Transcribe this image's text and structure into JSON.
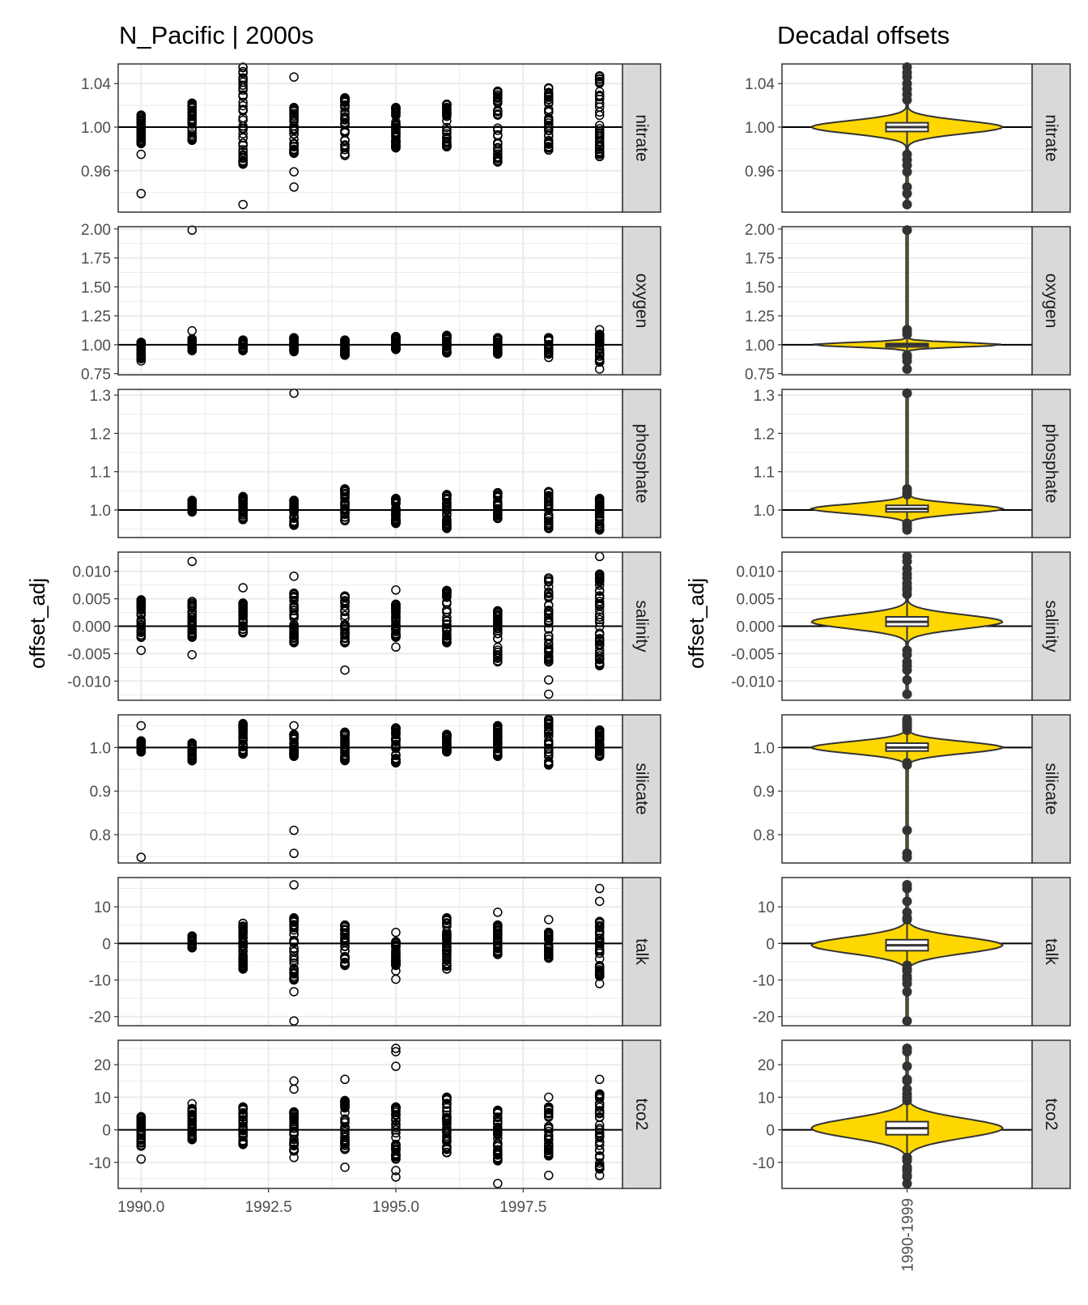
{
  "left_title": "N_Pacific | 2000s",
  "right_title": "Decadal offsets",
  "ylabel": "offset_adj",
  "x_ticks": [
    "1990.0",
    "1992.5",
    "1995.0",
    "1997.5"
  ],
  "x_tick_values": [
    1990.0,
    1992.5,
    1995.0,
    1997.5
  ],
  "x_range": [
    1989.55,
    1999.45
  ],
  "violin_category": "1990-1999",
  "colors": {
    "violin_fill": "#FFD700",
    "strip_fill": "#D9D9D9",
    "grid": "#EBEBEB",
    "line": "#000000"
  },
  "chart_data": [
    {
      "type": "scatter",
      "title": "N_Pacific | 2000s",
      "xlabel": "",
      "ylabel": "offset_adj",
      "panels": [
        {
          "label": "nitrate",
          "ylim": [
            0.922,
            1.058
          ],
          "ticks": [
            1.04,
            1.0,
            0.96
          ],
          "tick_labels": [
            "1.04",
            "1.00",
            "0.96"
          ],
          "years": [
            {
              "x": 1990,
              "min": 0.985,
              "max": 1.011,
              "outliers": [
                0.975,
                0.939
              ]
            },
            {
              "x": 1991,
              "min": 0.988,
              "max": 1.022,
              "outliers": []
            },
            {
              "x": 1992,
              "min": 0.966,
              "max": 1.055,
              "outliers": [
                0.929
              ]
            },
            {
              "x": 1993,
              "min": 0.976,
              "max": 1.018,
              "outliers": [
                1.046,
                0.959,
                0.945
              ]
            },
            {
              "x": 1994,
              "min": 0.974,
              "max": 1.027,
              "outliers": []
            },
            {
              "x": 1995,
              "min": 0.981,
              "max": 1.018,
              "outliers": []
            },
            {
              "x": 1996,
              "min": 0.982,
              "max": 1.021,
              "outliers": []
            },
            {
              "x": 1997,
              "min": 0.968,
              "max": 1.033,
              "outliers": []
            },
            {
              "x": 1998,
              "min": 0.979,
              "max": 1.036,
              "outliers": []
            },
            {
              "x": 1999,
              "min": 0.973,
              "max": 1.047,
              "outliers": []
            }
          ]
        },
        {
          "label": "oxygen",
          "ylim": [
            0.74,
            2.02
          ],
          "ticks": [
            2.0,
            1.75,
            1.5,
            1.25,
            1.0,
            0.75
          ],
          "tick_labels": [
            "2.00",
            "1.75",
            "1.50",
            "1.25",
            "1.00",
            "0.75"
          ],
          "years": [
            {
              "x": 1990,
              "min": 0.88,
              "max": 1.02,
              "outliers": [
                0.86
              ]
            },
            {
              "x": 1991,
              "min": 0.95,
              "max": 1.05,
              "outliers": [
                1.12,
                1.99
              ]
            },
            {
              "x": 1992,
              "min": 0.95,
              "max": 1.04,
              "outliers": []
            },
            {
              "x": 1993,
              "min": 0.94,
              "max": 1.06,
              "outliers": []
            },
            {
              "x": 1994,
              "min": 0.91,
              "max": 1.04,
              "outliers": []
            },
            {
              "x": 1995,
              "min": 0.96,
              "max": 1.07,
              "outliers": []
            },
            {
              "x": 1996,
              "min": 0.93,
              "max": 1.08,
              "outliers": []
            },
            {
              "x": 1997,
              "min": 0.92,
              "max": 1.06,
              "outliers": []
            },
            {
              "x": 1998,
              "min": 0.92,
              "max": 1.06,
              "outliers": [
                0.89
              ]
            },
            {
              "x": 1999,
              "min": 0.85,
              "max": 1.09,
              "outliers": [
                0.79,
                1.13
              ]
            }
          ]
        },
        {
          "label": "phosphate",
          "ylim": [
            0.928,
            1.315
          ],
          "ticks": [
            1.3,
            1.2,
            1.1,
            1.0
          ],
          "tick_labels": [
            "1.3",
            "1.2",
            "1.1",
            "1.0"
          ],
          "years": [
            {
              "x": 1991,
              "min": 0.995,
              "max": 1.025,
              "outliers": []
            },
            {
              "x": 1992,
              "min": 0.975,
              "max": 1.035,
              "outliers": []
            },
            {
              "x": 1993,
              "min": 0.96,
              "max": 1.025,
              "outliers": [
                1.305
              ]
            },
            {
              "x": 1994,
              "min": 0.972,
              "max": 1.055,
              "outliers": []
            },
            {
              "x": 1995,
              "min": 0.965,
              "max": 1.03,
              "outliers": []
            },
            {
              "x": 1996,
              "min": 0.952,
              "max": 1.04,
              "outliers": []
            },
            {
              "x": 1997,
              "min": 0.978,
              "max": 1.045,
              "outliers": []
            },
            {
              "x": 1998,
              "min": 0.952,
              "max": 1.048,
              "outliers": []
            },
            {
              "x": 1999,
              "min": 0.948,
              "max": 1.03,
              "outliers": []
            }
          ]
        },
        {
          "label": "salinity",
          "ylim": [
            -0.0135,
            0.0135
          ],
          "ticks": [
            0.01,
            0.005,
            0.0,
            -0.005,
            -0.01
          ],
          "tick_labels": [
            "0.010",
            "0.005",
            "0.000",
            "-0.005",
            "-0.010"
          ],
          "years": [
            {
              "x": 1990,
              "min": -0.002,
              "max": 0.0048,
              "outliers": [
                -0.0044
              ]
            },
            {
              "x": 1991,
              "min": -0.002,
              "max": 0.0045,
              "outliers": [
                -0.0052,
                0.0118
              ]
            },
            {
              "x": 1992,
              "min": -0.0012,
              "max": 0.0042,
              "outliers": [
                0.007
              ]
            },
            {
              "x": 1993,
              "min": -0.003,
              "max": 0.006,
              "outliers": [
                0.0091
              ]
            },
            {
              "x": 1994,
              "min": -0.003,
              "max": 0.0055,
              "outliers": [
                -0.008
              ]
            },
            {
              "x": 1995,
              "min": -0.002,
              "max": 0.004,
              "outliers": [
                -0.0038,
                0.0066
              ]
            },
            {
              "x": 1996,
              "min": -0.003,
              "max": 0.0065,
              "outliers": []
            },
            {
              "x": 1997,
              "min": -0.0065,
              "max": 0.0028,
              "outliers": []
            },
            {
              "x": 1998,
              "min": -0.0065,
              "max": 0.0088,
              "outliers": [
                -0.0098,
                -0.0124
              ]
            },
            {
              "x": 1999,
              "min": -0.0072,
              "max": 0.0095,
              "outliers": [
                0.0127
              ]
            }
          ]
        },
        {
          "label": "silicate",
          "ylim": [
            0.735,
            1.075
          ],
          "ticks": [
            1.0,
            0.9,
            0.8
          ],
          "tick_labels": [
            "1.0",
            "0.9",
            "0.8"
          ],
          "years": [
            {
              "x": 1990,
              "min": 0.99,
              "max": 1.015,
              "outliers": [
                1.05,
                0.748
              ]
            },
            {
              "x": 1991,
              "min": 0.97,
              "max": 1.01,
              "outliers": []
            },
            {
              "x": 1992,
              "min": 0.985,
              "max": 1.055,
              "outliers": []
            },
            {
              "x": 1993,
              "min": 0.98,
              "max": 1.03,
              "outliers": [
                1.05,
                0.81,
                0.757
              ]
            },
            {
              "x": 1994,
              "min": 0.97,
              "max": 1.035,
              "outliers": []
            },
            {
              "x": 1995,
              "min": 0.965,
              "max": 1.045,
              "outliers": []
            },
            {
              "x": 1996,
              "min": 0.99,
              "max": 1.03,
              "outliers": []
            },
            {
              "x": 1997,
              "min": 0.98,
              "max": 1.05,
              "outliers": []
            },
            {
              "x": 1998,
              "min": 0.96,
              "max": 1.065,
              "outliers": []
            },
            {
              "x": 1999,
              "min": 0.98,
              "max": 1.04,
              "outliers": []
            }
          ]
        },
        {
          "label": "talk",
          "ylim": [
            -22.5,
            18.0
          ],
          "ticks": [
            10,
            0,
            -10,
            -20
          ],
          "tick_labels": [
            "10",
            "0",
            "-10",
            "-20"
          ],
          "years": [
            {
              "x": 1991,
              "min": -1.2,
              "max": 2.0,
              "outliers": []
            },
            {
              "x": 1992,
              "min": -7.0,
              "max": 5.5,
              "outliers": []
            },
            {
              "x": 1993,
              "min": -10.0,
              "max": 7.0,
              "outliers": [
                16.0,
                -13.2,
                -21.2
              ]
            },
            {
              "x": 1994,
              "min": -6.0,
              "max": 5.0,
              "outliers": []
            },
            {
              "x": 1995,
              "min": -6.0,
              "max": 0.5,
              "outliers": [
                3.0,
                -7.5,
                -9.8
              ]
            },
            {
              "x": 1996,
              "min": -7.0,
              "max": 7.0,
              "outliers": []
            },
            {
              "x": 1997,
              "min": -3.0,
              "max": 5.0,
              "outliers": [
                8.5
              ]
            },
            {
              "x": 1998,
              "min": -4.0,
              "max": 3.0,
              "outliers": [
                6.5
              ]
            },
            {
              "x": 1999,
              "min": -9.0,
              "max": 6.0,
              "outliers": [
                11.5,
                15.0,
                -11.0
              ]
            }
          ]
        },
        {
          "label": "tco2",
          "ylim": [
            -18.0,
            27.5
          ],
          "ticks": [
            20,
            10,
            0,
            -10
          ],
          "tick_labels": [
            "20",
            "10",
            "0",
            "-10"
          ],
          "years": [
            {
              "x": 1990,
              "min": -5.0,
              "max": 4.0,
              "outliers": [
                -9.0
              ]
            },
            {
              "x": 1991,
              "min": -3.0,
              "max": 6.5,
              "outliers": [
                8.0
              ]
            },
            {
              "x": 1992,
              "min": -4.5,
              "max": 7.0,
              "outliers": []
            },
            {
              "x": 1993,
              "min": -6.5,
              "max": 5.5,
              "outliers": [
                -8.5,
                12.5,
                15.0
              ]
            },
            {
              "x": 1994,
              "min": -6.0,
              "max": 9.0,
              "outliers": [
                15.5,
                -11.5
              ]
            },
            {
              "x": 1995,
              "min": -9.0,
              "max": 7.0,
              "outliers": [
                19.5,
                24.0,
                25.0,
                -12.5,
                -14.5
              ]
            },
            {
              "x": 1996,
              "min": -7.0,
              "max": 10.0,
              "outliers": []
            },
            {
              "x": 1997,
              "min": -9.5,
              "max": 6.0,
              "outliers": [
                -16.5
              ]
            },
            {
              "x": 1998,
              "min": -8.0,
              "max": 7.0,
              "outliers": [
                10.0,
                -14.0
              ]
            },
            {
              "x": 1999,
              "min": -12.0,
              "max": 11.0,
              "outliers": [
                15.5,
                -14.0
              ]
            }
          ]
        }
      ]
    },
    {
      "type": "violin",
      "title": "Decadal offsets",
      "xlabel": "",
      "ylabel": "offset_adj",
      "categories": [
        "1990-1999"
      ],
      "panels": [
        {
          "label": "nitrate",
          "median": 1.0,
          "q1": 0.996,
          "q3": 1.004,
          "whisker_low": 0.977,
          "whisker_high": 1.022,
          "outliers": [
            0.975,
            0.97,
            0.965,
            0.959,
            0.945,
            0.939,
            0.929,
            1.025,
            1.03,
            1.035,
            1.04,
            1.046,
            1.05,
            1.055
          ]
        },
        {
          "label": "oxygen",
          "median": 1.0,
          "q1": 0.985,
          "q3": 1.01,
          "whisker_low": 0.93,
          "whisker_high": 1.07,
          "outliers": [
            0.91,
            0.89,
            0.86,
            0.79,
            1.09,
            1.12,
            1.13,
            1.99
          ]
        },
        {
          "label": "phosphate",
          "median": 1.003,
          "q1": 0.995,
          "q3": 1.012,
          "whisker_low": 0.97,
          "whisker_high": 1.035,
          "outliers": [
            0.965,
            0.96,
            0.952,
            0.948,
            1.04,
            1.045,
            1.055,
            1.305
          ]
        },
        {
          "label": "salinity",
          "median": 0.0008,
          "q1": 0.0,
          "q3": 0.0017,
          "whisker_low": -0.0035,
          "whisker_high": 0.005,
          "outliers": [
            -0.0044,
            -0.0052,
            -0.0065,
            -0.0072,
            -0.008,
            -0.0098,
            -0.0124,
            0.0058,
            0.0066,
            0.007,
            0.0078,
            0.0088,
            0.0095,
            0.0105,
            0.0118,
            0.0127
          ]
        },
        {
          "label": "silicate",
          "median": 1.0,
          "q1": 0.992,
          "q3": 1.01,
          "whisker_low": 0.97,
          "whisker_high": 1.035,
          "outliers": [
            0.965,
            0.96,
            0.81,
            0.757,
            0.748,
            1.04,
            1.045,
            1.05,
            1.055,
            1.06,
            1.065
          ]
        },
        {
          "label": "talk",
          "median": -0.5,
          "q1": -2.0,
          "q3": 1.0,
          "whisker_low": -5.5,
          "whisker_high": 5.5,
          "outliers": [
            -6.0,
            -7.0,
            -7.5,
            -9.0,
            -9.8,
            -11.0,
            -13.2,
            -21.2,
            6.5,
            7.0,
            8.5,
            11.5,
            15.0,
            16.0
          ]
        },
        {
          "label": "tco2",
          "median": 0.5,
          "q1": -1.5,
          "q3": 2.5,
          "whisker_low": -7.0,
          "whisker_high": 8.0,
          "outliers": [
            -8.5,
            -9.0,
            -9.5,
            -11.5,
            -12.0,
            -12.5,
            -14.0,
            -14.5,
            -16.5,
            9.0,
            10.0,
            11.0,
            12.5,
            15.0,
            15.5,
            19.5,
            24.0,
            25.0
          ]
        }
      ]
    }
  ]
}
